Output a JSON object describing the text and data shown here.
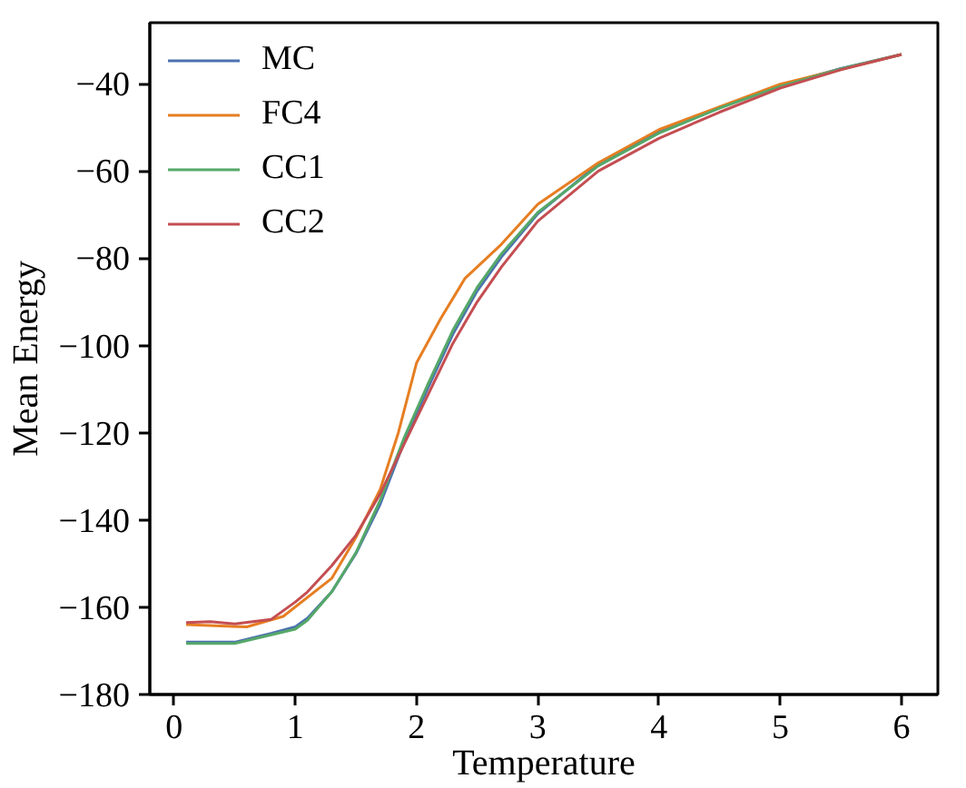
{
  "chart_data": {
    "type": "line",
    "xlabel": "Temperature",
    "ylabel": "Mean Energy",
    "xlim": [
      -0.2,
      6.3
    ],
    "ylim": [
      -180,
      -26
    ],
    "xticks": [
      0,
      1,
      2,
      3,
      4,
      5,
      6
    ],
    "yticks": [
      -180,
      -160,
      -140,
      -120,
      -100,
      -80,
      -60,
      -40
    ],
    "grid": false,
    "legend": "top left",
    "marker": "none",
    "line_style": "solid",
    "series": [
      {
        "name": "MC",
        "color": "#4c72b0",
        "x": [
          0.1,
          0.5,
          0.8,
          1.0,
          1.1,
          1.3,
          1.5,
          1.7,
          1.9,
          2.1,
          2.3,
          2.5,
          2.7,
          3.0,
          3.5,
          4.0,
          4.5,
          5.0,
          5.5,
          6.0
        ],
        "values": [
          -168,
          -168,
          -166,
          -164.5,
          -162.5,
          -156.5,
          -147.7,
          -136.4,
          -122,
          -109.4,
          -97.4,
          -87.5,
          -79.7,
          -69.8,
          -58.4,
          -51,
          -45.4,
          -40.4,
          -36.5,
          -33.3
        ]
      },
      {
        "name": "FC4",
        "color": "#e67e22",
        "x": [
          0.1,
          0.6,
          0.9,
          1.3,
          1.5,
          1.7,
          1.85,
          2.0,
          2.2,
          2.4,
          2.7,
          3.0,
          3.5,
          4.0,
          5.0,
          6.0
        ],
        "values": [
          -164,
          -164.5,
          -162.1,
          -153.4,
          -144,
          -133,
          -120,
          -104,
          -93.8,
          -84.6,
          -76.8,
          -67.6,
          -58.1,
          -50.5,
          -40.1,
          -33.3
        ]
      },
      {
        "name": "CC1",
        "color": "#55a868",
        "x": [
          0.1,
          0.5,
          1.0,
          1.1,
          1.3,
          1.5,
          1.7,
          1.9,
          2.1,
          2.3,
          2.5,
          2.7,
          3.0,
          3.5,
          4.0,
          4.5,
          5.0,
          5.5,
          6.0
        ],
        "values": [
          -168.3,
          -168.3,
          -165,
          -163,
          -156.5,
          -147.5,
          -135.5,
          -121,
          -108.5,
          -96.5,
          -86.7,
          -79,
          -69.5,
          -58.8,
          -51.3,
          -45.6,
          -40.6,
          -36.6,
          -33.3
        ]
      },
      {
        "name": "CC2",
        "color": "#c44e52",
        "x": [
          0.1,
          0.3,
          0.5,
          0.8,
          1.0,
          1.1,
          1.3,
          1.5,
          1.7,
          1.9,
          2.1,
          2.3,
          2.5,
          2.7,
          3.0,
          3.5,
          4.0,
          4.5,
          5.0,
          5.5,
          6.0
        ],
        "values": [
          -163.5,
          -163.3,
          -163.8,
          -162.8,
          -158.8,
          -156.5,
          -150.5,
          -143.5,
          -134,
          -122.5,
          -111,
          -99.5,
          -90,
          -82,
          -71.5,
          -60,
          -52.5,
          -46.5,
          -41,
          -36.8,
          -33.3
        ]
      }
    ]
  }
}
